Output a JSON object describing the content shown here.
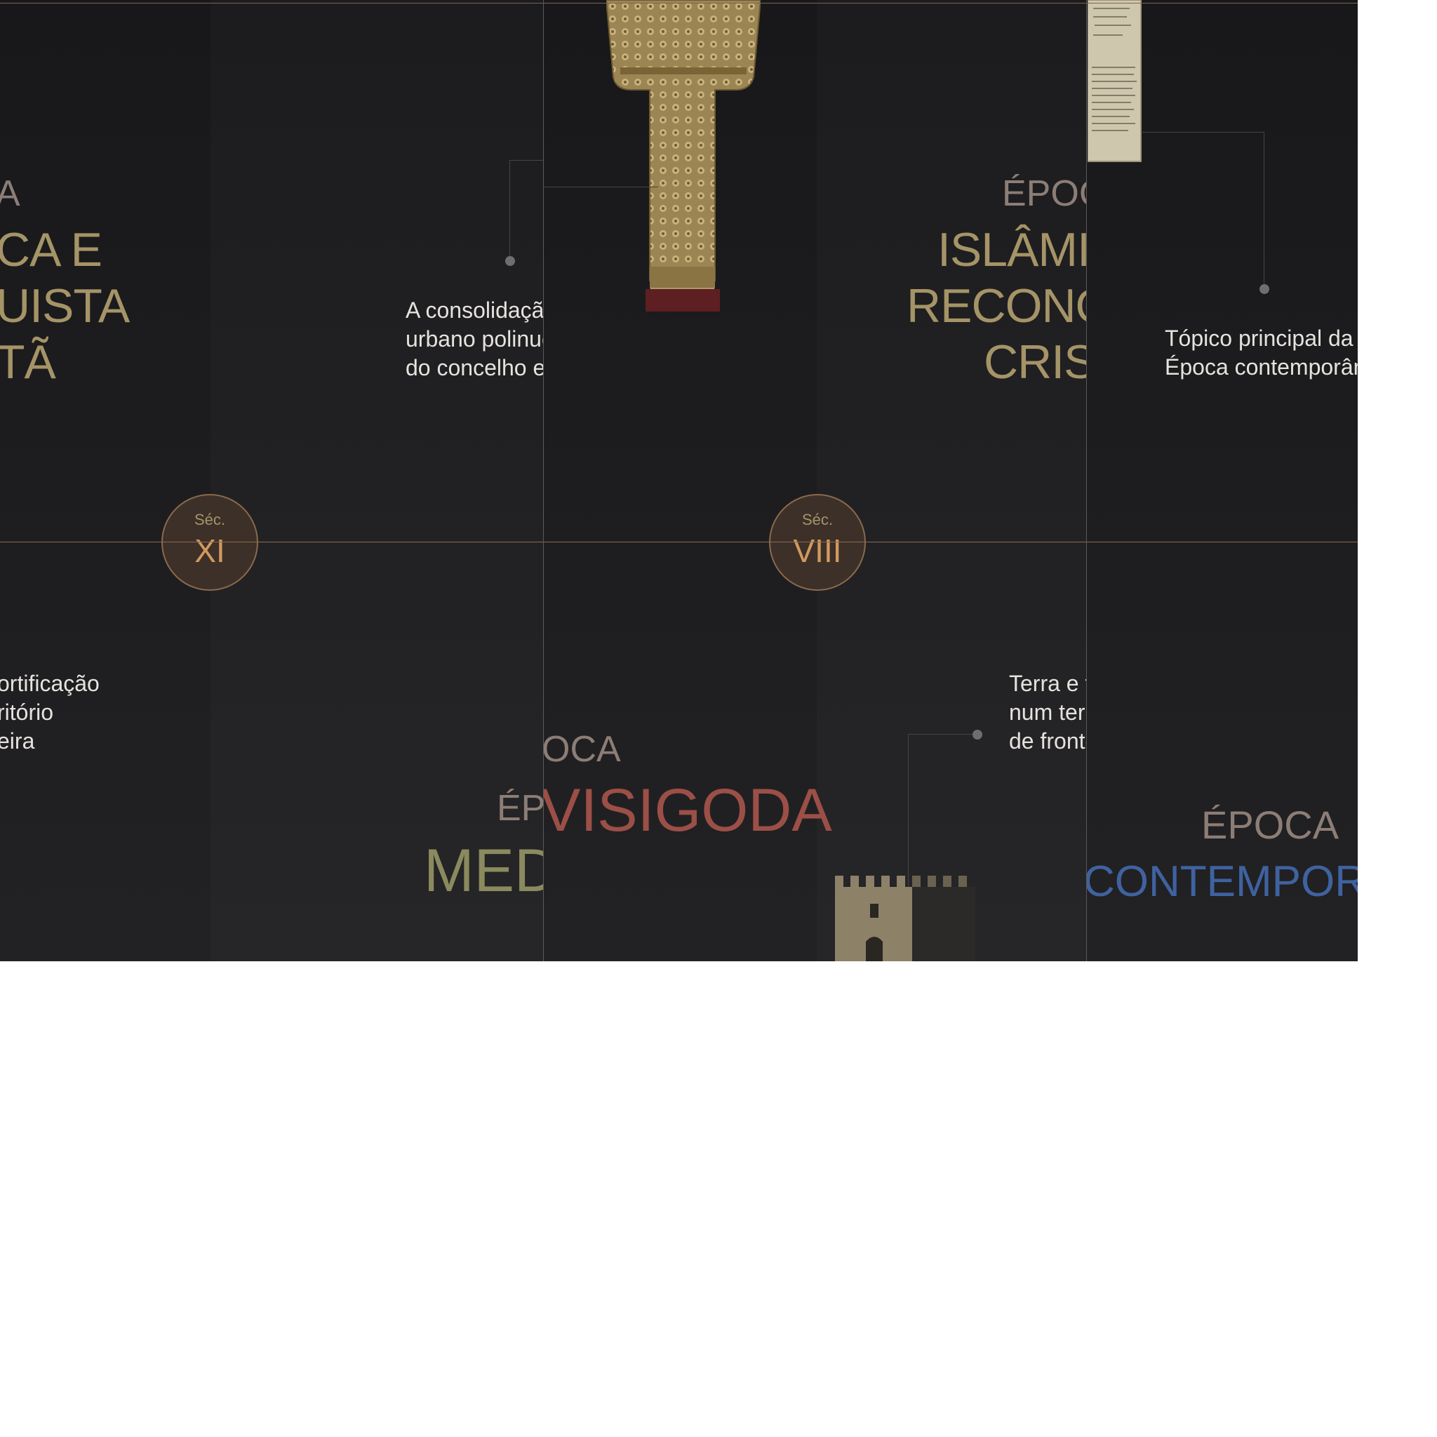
{
  "panel1": {
    "heading_top": "A",
    "heading_lines": [
      "CA E",
      "UISTA",
      "TÃ"
    ],
    "paragraph_left": [
      "ortificação",
      "ritório",
      "eira"
    ],
    "paragraph_right": [
      "A consolidação",
      "urbano polinucrge",
      "do concelho e episcopal"
    ],
    "bottom_small": "ÉP",
    "bottom_big": "MED",
    "circle": {
      "label": "Séc.",
      "number": "XI"
    }
  },
  "panel2": {
    "heading_top": "ÉPOC",
    "heading_lines": [
      "ISLÂMIC",
      "RECONQ",
      "CRIST"
    ],
    "top_small": "OCA",
    "visigoda": "VISIGODA",
    "paragraph": [
      "Terra e fo",
      "num terri",
      "de fronte"
    ],
    "circle": {
      "label": "Séc.",
      "number": "VIII"
    }
  },
  "panel3": {
    "paragraph": [
      "Tópico principal da",
      "Época contemporâne"
    ],
    "epoca": "ÉPOCA",
    "contemporanea": "CONTEMPORÂN"
  },
  "colors": {
    "background": "#1e1e20",
    "gold": "#a59467",
    "muted": "#8c7d76",
    "visigoda": "#9c4f47",
    "medieval": "#8a8a5e",
    "contemporanea": "#3f62a0",
    "timeline": "#8a6a4d"
  },
  "icons": [
    "stole-image",
    "manuscript-image",
    "castle-tower-image"
  ]
}
